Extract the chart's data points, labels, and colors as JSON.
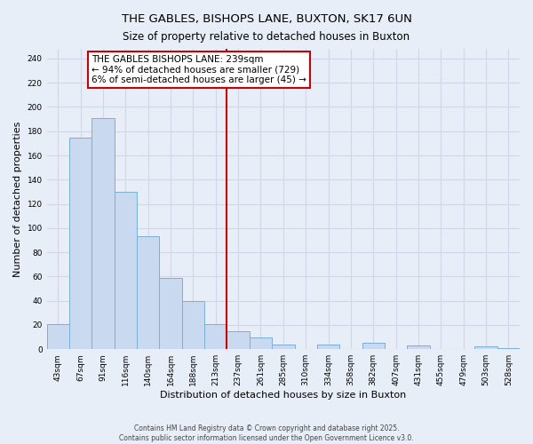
{
  "title": "THE GABLES, BISHOPS LANE, BUXTON, SK17 6UN",
  "subtitle": "Size of property relative to detached houses in Buxton",
  "xlabel": "Distribution of detached houses by size in Buxton",
  "ylabel": "Number of detached properties",
  "bar_labels": [
    "43sqm",
    "67sqm",
    "91sqm",
    "116sqm",
    "140sqm",
    "164sqm",
    "188sqm",
    "213sqm",
    "237sqm",
    "261sqm",
    "285sqm",
    "310sqm",
    "334sqm",
    "358sqm",
    "382sqm",
    "407sqm",
    "431sqm",
    "455sqm",
    "479sqm",
    "503sqm",
    "528sqm"
  ],
  "bar_values": [
    21,
    175,
    191,
    130,
    93,
    59,
    40,
    21,
    15,
    10,
    4,
    0,
    4,
    0,
    5,
    0,
    3,
    0,
    0,
    2,
    1
  ],
  "bar_color": "#c9d9f0",
  "bar_edge_color": "#7bafd4",
  "vline_color": "#cc0000",
  "annotation_title": "THE GABLES BISHOPS LANE: 239sqm",
  "annotation_line1": "← 94% of detached houses are smaller (729)",
  "annotation_line2": "6% of semi-detached houses are larger (45) →",
  "annotation_box_color": "#ffffff",
  "annotation_box_edge": "#cc0000",
  "ylim": [
    0,
    248
  ],
  "yticks": [
    0,
    20,
    40,
    60,
    80,
    100,
    120,
    140,
    160,
    180,
    200,
    220,
    240
  ],
  "footer1": "Contains HM Land Registry data © Crown copyright and database right 2025.",
  "footer2": "Contains public sector information licensed under the Open Government Licence v3.0.",
  "bg_color": "#e8eef8",
  "grid_color": "#d0d8e8",
  "title_fontsize": 9.5,
  "subtitle_fontsize": 8.5,
  "xlabel_fontsize": 8,
  "ylabel_fontsize": 8,
  "tick_fontsize": 6.5,
  "annotation_fontsize": 7.5,
  "footer_fontsize": 5.5
}
